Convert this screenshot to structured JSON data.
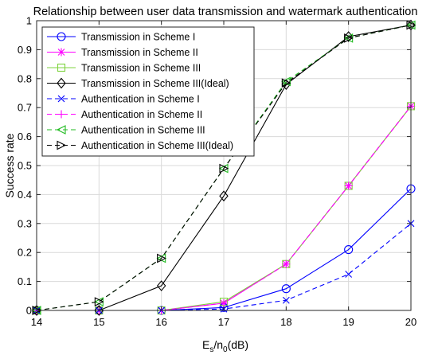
{
  "chart_data": {
    "type": "line",
    "title": "Relationship between user data transmission and watermark authentication",
    "xlabel": "E_s/n_0(dB)",
    "xlabel_parts": {
      "base": "E",
      "sub1": "s",
      "mid": "/n",
      "sub2": "0",
      "tail": "(dB)"
    },
    "ylabel": "Success rate",
    "x": [
      14,
      15,
      16,
      17,
      18,
      19,
      20
    ],
    "xlim": [
      14,
      20
    ],
    "ylim": [
      0,
      1
    ],
    "xticks": [
      "14",
      "15",
      "16",
      "17",
      "18",
      "19",
      "20"
    ],
    "yticks": [
      "0",
      "0.1",
      "0.2",
      "0.3",
      "0.4",
      "0.5",
      "0.6",
      "0.7",
      "0.8",
      "0.9",
      "1"
    ],
    "grid": true,
    "legend_position": "top-left",
    "series": [
      {
        "name": "Transmission in Scheme I",
        "color": "#0000ff",
        "dash": "solid",
        "marker": "circle",
        "values": [
          0,
          0,
          0,
          0.01,
          0.075,
          0.21,
          0.42
        ]
      },
      {
        "name": "Transmission in Scheme II",
        "color": "#ff00ff",
        "dash": "solid",
        "marker": "asterisk",
        "values": [
          0,
          0,
          0,
          0.025,
          0.16,
          0.43,
          0.705
        ]
      },
      {
        "name": "Transmission in Scheme III",
        "color": "#7fd33f",
        "dash": "solid",
        "marker": "square",
        "values": [
          0,
          0,
          0,
          0.03,
          0.16,
          0.43,
          0.705
        ]
      },
      {
        "name": "Transmission in Scheme III(Ideal)",
        "color": "#000000",
        "dash": "solid",
        "marker": "diamond",
        "values": [
          0,
          0,
          0.085,
          0.395,
          0.78,
          0.945,
          0.985
        ]
      },
      {
        "name": "Authentication in Scheme I",
        "color": "#0000ff",
        "dash": "dashed",
        "marker": "x",
        "values": [
          0,
          0,
          0,
          0.005,
          0.035,
          0.125,
          0.3
        ]
      },
      {
        "name": "Authentication in Scheme II",
        "color": "#ff00ff",
        "dash": "dashed",
        "marker": "plus",
        "values": [
          0,
          0,
          0,
          0.025,
          0.16,
          0.43,
          0.705
        ]
      },
      {
        "name": "Authentication in Scheme III",
        "color": "#22bb22",
        "dash": "dashed",
        "marker": "triangle-left",
        "values": [
          0,
          0.03,
          0.18,
          0.49,
          0.79,
          0.94,
          0.985
        ]
      },
      {
        "name": "Authentication in Scheme III(Ideal)",
        "color": "#000000",
        "dash": "dashed",
        "marker": "triangle-right",
        "values": [
          0,
          0.03,
          0.18,
          0.49,
          0.785,
          0.94,
          0.985
        ]
      }
    ]
  }
}
